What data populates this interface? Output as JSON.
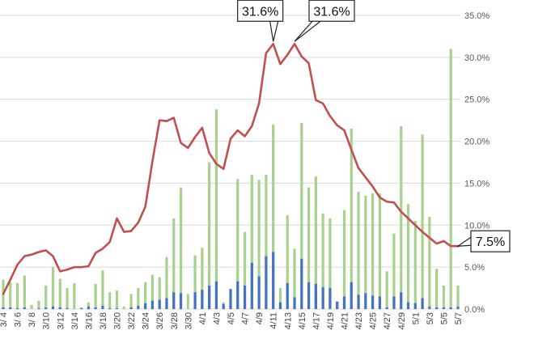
{
  "chart_data": {
    "type": "bar",
    "title": "",
    "xlabel": "",
    "ylabel": "",
    "ylim": [
      0,
      35
    ],
    "yticks": [
      "0.0%",
      "5.0%",
      "10.0%",
      "15.0%",
      "20.0%",
      "25.0%",
      "30.0%",
      "35.0%"
    ],
    "grid": true,
    "legend": "none",
    "x": [
      "3/4",
      "3/5",
      "3/6",
      "3/7",
      "3/8",
      "3/9",
      "3/10",
      "3/11",
      "3/12",
      "3/13",
      "3/14",
      "3/15",
      "3/16",
      "3/17",
      "3/18",
      "3/19",
      "3/20",
      "3/21",
      "3/22",
      "3/23",
      "3/24",
      "3/25",
      "3/26",
      "3/27",
      "3/28",
      "3/29",
      "3/30",
      "3/31",
      "4/1",
      "4/2",
      "4/3",
      "4/4",
      "4/5",
      "4/6",
      "4/7",
      "4/8",
      "4/9",
      "4/10",
      "4/11",
      "4/12",
      "4/13",
      "4/14",
      "4/15",
      "4/16",
      "4/17",
      "4/18",
      "4/19",
      "4/20",
      "4/21",
      "4/22",
      "4/23",
      "4/24",
      "4/25",
      "4/26",
      "4/27",
      "4/28",
      "4/29",
      "4/30",
      "5/1",
      "5/2",
      "5/3",
      "5/4",
      "5/5",
      "5/6",
      "5/7"
    ],
    "x_tick_labels": [
      "3/ 4",
      "3/ 6",
      "3/ 8",
      "3/10",
      "3/12",
      "3/14",
      "3/16",
      "3/18",
      "3/20",
      "3/22",
      "3/24",
      "3/26",
      "3/28",
      "3/30",
      "4/1",
      "4/3",
      "4/5",
      "4/7",
      "4/9",
      "4/11",
      "4/13",
      "4/15",
      "4/17",
      "4/19",
      "4/21",
      "4/23",
      "4/25",
      "4/27",
      "4/29",
      "5/1",
      "5/3",
      "5/5",
      "5/7"
    ],
    "series": [
      {
        "type": "bar",
        "color": "#a9d18e",
        "values": [
          3.5,
          3.2,
          3.1,
          4.0,
          0.5,
          1.0,
          2.8,
          5.0,
          3.6,
          2.5,
          3.1,
          0.2,
          0.8,
          3.0,
          4.6,
          2.0,
          2.2,
          0.3,
          1.8,
          2.5,
          3.2,
          4.1,
          3.8,
          6.2,
          10.8,
          14.5,
          1.8,
          6.4,
          7.3,
          17.5,
          23.8,
          0.8,
          1.0,
          15.5,
          9.2,
          16.0,
          15.4,
          16.0,
          22.0,
          2.5,
          11.2,
          7.2,
          22.2,
          14.5,
          15.8,
          11.4,
          10.8,
          0.8,
          11.8,
          21.5,
          14.0,
          13.5,
          13.8,
          13.8,
          4.5,
          9.0,
          21.8,
          12.5,
          10.5,
          20.8,
          11.0,
          4.8,
          2.8,
          31.0,
          2.8
        ]
      },
      {
        "type": "bar",
        "color": "#4472c4",
        "values": [
          0.2,
          0.2,
          0.1,
          0.2,
          0.0,
          0.1,
          0.2,
          0.3,
          0.2,
          0.1,
          0.0,
          0.1,
          0.3,
          0.2,
          0.4,
          0.1,
          0.1,
          0.0,
          0.2,
          0.4,
          0.7,
          1.0,
          1.1,
          1.3,
          2.0,
          1.9,
          0.0,
          2.0,
          2.3,
          2.8,
          3.3,
          0.6,
          2.4,
          3.3,
          2.8,
          5.5,
          3.9,
          6.3,
          6.8,
          0.8,
          3.1,
          1.4,
          6.0,
          3.2,
          3.0,
          2.6,
          2.5,
          0.9,
          1.5,
          3.2,
          1.7,
          1.9,
          1.6,
          1.5,
          0.2,
          1.5,
          2.0,
          0.8,
          0.7,
          1.3,
          0.3,
          0.2,
          0.2,
          0.2,
          0.3
        ]
      },
      {
        "type": "line",
        "color": "#c0504d",
        "values": [
          1.8,
          3.5,
          5.3,
          6.3,
          6.5,
          6.8,
          7.0,
          6.3,
          4.5,
          4.7,
          5.0,
          5.0,
          5.1,
          6.7,
          7.2,
          8.0,
          10.8,
          9.2,
          9.3,
          10.3,
          12.2,
          17.6,
          22.5,
          22.4,
          22.8,
          19.8,
          19.2,
          20.5,
          21.6,
          18.6,
          17.3,
          16.7,
          20.3,
          21.3,
          20.6,
          21.8,
          24.5,
          30.5,
          31.6,
          29.2,
          30.3,
          31.6,
          30.1,
          29.3,
          24.9,
          24.5,
          23.0,
          21.9,
          21.3,
          19.0,
          16.8,
          15.7,
          14.6,
          13.3,
          12.8,
          12.7,
          11.6,
          10.8,
          10.0,
          9.2,
          8.5,
          7.8,
          8.1,
          7.5,
          7.5
        ]
      }
    ],
    "annotations": [
      {
        "text": "31.6%",
        "x": "4/11",
        "y": 31.6
      },
      {
        "text": "31.6%",
        "x": "4/14",
        "y": 31.6
      },
      {
        "text": "7.5%",
        "x": "5/7",
        "y": 7.5
      }
    ]
  }
}
